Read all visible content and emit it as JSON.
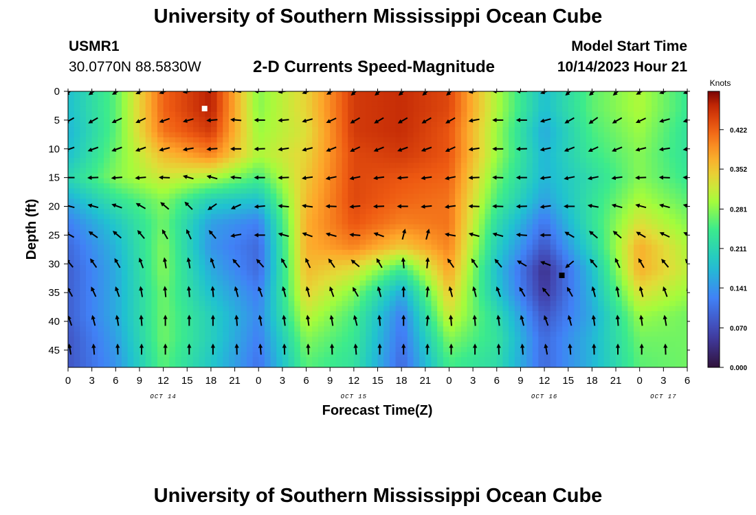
{
  "header": {
    "title": "University of Southern Mississippi Ocean Cube",
    "station_id": "USMR1",
    "station_coords": "30.0770N  88.5830W",
    "subtitle": "2-D Currents Speed-Magnitude",
    "model_label": "Model Start Time",
    "model_time": "10/14/2023 Hour 21"
  },
  "footer": {
    "title": "University of Southern Mississippi Ocean Cube"
  },
  "chart_data": {
    "type": "heatmap",
    "title": "2-D Currents Speed-Magnitude",
    "xlabel": "Forecast Time(Z)",
    "ylabel": "Depth (ft)",
    "colorbar_label": "Knots",
    "colorbar_ticks": [
      "0.422",
      "0.352",
      "0.281",
      "0.211",
      "0.141",
      "0.070",
      "0.000"
    ],
    "colorbar_values": [
      0.422,
      0.352,
      0.281,
      0.211,
      0.141,
      0.07,
      0.0
    ],
    "value_range": [
      0.0,
      0.49
    ],
    "x_tick_labels": [
      "0",
      "3",
      "6",
      "9",
      "12",
      "15",
      "18",
      "21",
      "0",
      "3",
      "6",
      "9",
      "12",
      "15",
      "18",
      "21",
      "0",
      "3",
      "6",
      "9",
      "12",
      "15",
      "18",
      "21",
      "0",
      "3",
      "6"
    ],
    "date_labels": [
      {
        "label": "OCT 14",
        "hour": 12
      },
      {
        "label": "OCT 15",
        "hour": 36
      },
      {
        "label": "OCT 16",
        "hour": 60
      },
      {
        "label": "OCT 17",
        "hour": 75
      }
    ],
    "x_range_hours": [
      0,
      78
    ],
    "y_ticks": [
      0,
      5,
      10,
      15,
      20,
      25,
      30,
      35,
      40,
      45
    ],
    "y_range": [
      0,
      48
    ],
    "depth_levels": [
      3,
      7,
      11,
      15,
      19,
      23,
      27,
      31,
      35,
      39,
      43,
      47
    ],
    "time_hours": [
      0,
      6,
      12,
      18,
      24,
      30,
      36,
      42,
      48,
      54,
      60,
      66,
      72,
      78
    ],
    "speed_knots": [
      [
        0.18,
        0.26,
        0.42,
        0.47,
        0.28,
        0.34,
        0.45,
        0.46,
        0.44,
        0.3,
        0.18,
        0.26,
        0.3,
        0.24
      ],
      [
        0.17,
        0.26,
        0.41,
        0.45,
        0.29,
        0.33,
        0.45,
        0.46,
        0.43,
        0.29,
        0.16,
        0.25,
        0.29,
        0.23
      ],
      [
        0.18,
        0.27,
        0.36,
        0.4,
        0.3,
        0.34,
        0.44,
        0.45,
        0.43,
        0.29,
        0.17,
        0.24,
        0.28,
        0.23
      ],
      [
        0.21,
        0.28,
        0.32,
        0.3,
        0.25,
        0.35,
        0.44,
        0.43,
        0.42,
        0.27,
        0.17,
        0.22,
        0.28,
        0.24
      ],
      [
        0.16,
        0.23,
        0.28,
        0.2,
        0.18,
        0.36,
        0.44,
        0.42,
        0.41,
        0.25,
        0.15,
        0.23,
        0.3,
        0.26
      ],
      [
        0.12,
        0.19,
        0.27,
        0.15,
        0.12,
        0.37,
        0.43,
        0.4,
        0.41,
        0.22,
        0.11,
        0.23,
        0.33,
        0.28
      ],
      [
        0.1,
        0.17,
        0.28,
        0.14,
        0.1,
        0.37,
        0.4,
        0.35,
        0.4,
        0.2,
        0.08,
        0.21,
        0.37,
        0.3
      ],
      [
        0.09,
        0.16,
        0.28,
        0.16,
        0.1,
        0.36,
        0.33,
        0.24,
        0.38,
        0.18,
        0.04,
        0.18,
        0.37,
        0.31
      ],
      [
        0.09,
        0.16,
        0.27,
        0.18,
        0.12,
        0.34,
        0.28,
        0.16,
        0.35,
        0.19,
        0.05,
        0.17,
        0.33,
        0.29
      ],
      [
        0.09,
        0.16,
        0.27,
        0.2,
        0.13,
        0.31,
        0.25,
        0.12,
        0.32,
        0.22,
        0.08,
        0.16,
        0.29,
        0.27
      ],
      [
        0.08,
        0.15,
        0.27,
        0.2,
        0.12,
        0.28,
        0.24,
        0.11,
        0.28,
        0.23,
        0.1,
        0.17,
        0.27,
        0.27
      ],
      [
        0.08,
        0.14,
        0.26,
        0.19,
        0.11,
        0.26,
        0.23,
        0.1,
        0.25,
        0.22,
        0.1,
        0.17,
        0.26,
        0.27
      ]
    ],
    "arrow_times_hours": [
      0,
      3,
      6,
      9,
      12,
      15,
      18,
      21,
      24,
      27,
      30,
      33,
      36,
      39,
      42,
      45,
      48,
      51,
      54,
      57,
      60,
      63,
      66,
      69,
      72,
      75,
      78
    ],
    "arrow_depths_ft": [
      0,
      5,
      10,
      15,
      20,
      25,
      30,
      35,
      40,
      45
    ],
    "arrow_direction_deg": [
      [
        230,
        235,
        240,
        245,
        250,
        260,
        270,
        280,
        270,
        260,
        250,
        240,
        230,
        230,
        230,
        230,
        230,
        260,
        270,
        270,
        250,
        230,
        230,
        230,
        240,
        250,
        250
      ],
      [
        240,
        240,
        245,
        245,
        250,
        255,
        265,
        275,
        270,
        265,
        255,
        245,
        240,
        240,
        240,
        240,
        240,
        260,
        270,
        270,
        255,
        240,
        235,
        240,
        245,
        255,
        255
      ],
      [
        250,
        250,
        250,
        250,
        255,
        260,
        265,
        270,
        268,
        262,
        255,
        248,
        245,
        248,
        250,
        250,
        245,
        262,
        270,
        268,
        258,
        248,
        245,
        248,
        255,
        262,
        262
      ],
      [
        270,
        268,
        265,
        265,
        272,
        285,
        285,
        275,
        270,
        268,
        262,
        258,
        258,
        262,
        265,
        262,
        258,
        268,
        272,
        270,
        262,
        258,
        258,
        262,
        268,
        272,
        272
      ],
      [
        285,
        285,
        290,
        300,
        310,
        315,
        235,
        245,
        265,
        275,
        278,
        272,
        265,
        268,
        270,
        265,
        262,
        272,
        272,
        268,
        262,
        270,
        280,
        285,
        285,
        285,
        285
      ],
      [
        300,
        305,
        310,
        320,
        330,
        335,
        320,
        260,
        270,
        285,
        290,
        285,
        275,
        290,
        15,
        15,
        280,
        285,
        285,
        275,
        270,
        300,
        310,
        310,
        300,
        295,
        295
      ],
      [
        320,
        325,
        330,
        340,
        350,
        350,
        340,
        320,
        318,
        330,
        335,
        325,
        310,
        330,
        355,
        5,
        325,
        325,
        320,
        300,
        290,
        230,
        320,
        335,
        330,
        320,
        320
      ],
      [
        330,
        335,
        340,
        350,
        355,
        355,
        355,
        345,
        340,
        345,
        345,
        340,
        330,
        345,
        0,
        5,
        345,
        345,
        340,
        330,
        320,
        330,
        345,
        350,
        345,
        340,
        340
      ],
      [
        340,
        345,
        350,
        355,
        0,
        0,
        0,
        355,
        350,
        352,
        352,
        350,
        345,
        355,
        0,
        5,
        355,
        355,
        352,
        345,
        340,
        345,
        352,
        355,
        352,
        350,
        350
      ],
      [
        350,
        355,
        358,
        0,
        0,
        0,
        0,
        358,
        355,
        358,
        358,
        358,
        355,
        0,
        0,
        2,
        0,
        0,
        358,
        355,
        350,
        355,
        358,
        0,
        0,
        358,
        358
      ]
    ],
    "markers": [
      {
        "label": "max",
        "hour": 17.2,
        "depth": 3,
        "color": "#ffffff"
      },
      {
        "label": "min",
        "hour": 62.2,
        "depth": 32,
        "color": "#000000"
      }
    ]
  }
}
